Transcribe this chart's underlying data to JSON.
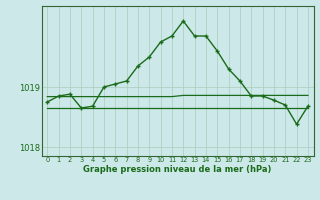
{
  "hours": [
    0,
    1,
    2,
    3,
    4,
    5,
    6,
    7,
    8,
    9,
    10,
    11,
    12,
    13,
    14,
    15,
    16,
    17,
    18,
    19,
    20,
    21,
    22,
    23
  ],
  "main_line": [
    1018.75,
    1018.85,
    1018.88,
    1018.65,
    1018.68,
    1019.0,
    1019.05,
    1019.1,
    1019.35,
    1019.5,
    1019.75,
    1019.85,
    1020.1,
    1019.85,
    1019.85,
    1019.6,
    1019.3,
    1019.1,
    1018.85,
    1018.85,
    1018.78,
    1018.7,
    1018.38,
    1018.68
  ],
  "flat_line_upper": [
    1018.84,
    1018.84,
    1018.84,
    1018.84,
    1018.84,
    1018.84,
    1018.84,
    1018.84,
    1018.84,
    1018.84,
    1018.84,
    1018.84,
    1018.86,
    1018.86,
    1018.86,
    1018.86,
    1018.86,
    1018.86,
    1018.86,
    1018.86,
    1018.86,
    1018.86,
    1018.86,
    1018.86
  ],
  "flat_line_lower": [
    1018.65,
    1018.65,
    1018.65,
    1018.65,
    1018.65,
    1018.65,
    1018.65,
    1018.65,
    1018.65,
    1018.65,
    1018.65,
    1018.65,
    1018.65,
    1018.65,
    1018.65,
    1018.65,
    1018.65,
    1018.65,
    1018.65,
    1018.65,
    1018.65,
    1018.65,
    1018.65,
    1018.65
  ],
  "ylim_min": 1017.85,
  "ylim_max": 1020.35,
  "ytick_vals": [
    1018.0,
    1019.0
  ],
  "xlabel": "Graphe pression niveau de la mer (hPa)",
  "line_color": "#1a6b1a",
  "bg_color": "#cce8e8",
  "grid_color": "#aaccbb",
  "spine_color": "#336633"
}
